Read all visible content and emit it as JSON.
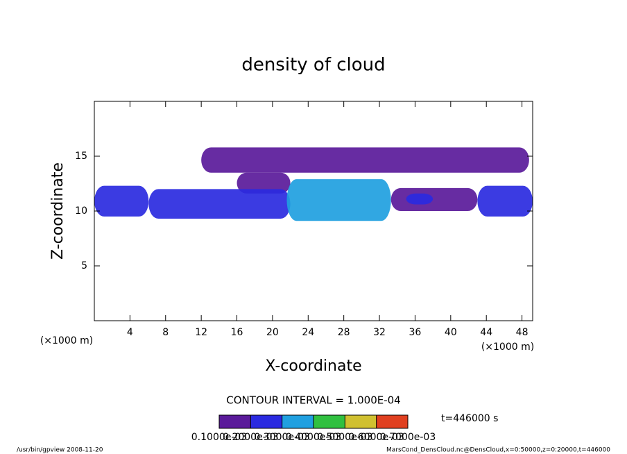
{
  "chart_data": {
    "type": "contour",
    "title": "density of cloud",
    "x_label": "X-coordinate",
    "y_label": "Z-coordinate",
    "x_unit_left": "(×1000 m)",
    "x_unit_right": "(×1000 m)",
    "xlim": [
      0,
      49.2
    ],
    "xticks": [
      4,
      8,
      12,
      16,
      20,
      24,
      28,
      32,
      36,
      40,
      44,
      48
    ],
    "ylim": [
      0,
      20
    ],
    "yticks": [
      5,
      10,
      15
    ],
    "regions": [
      {
        "x": [
          12,
          48.8
        ],
        "z": [
          13.5,
          15.8
        ],
        "value": 0.00015
      },
      {
        "x": [
          16,
          22
        ],
        "z": [
          11.6,
          13.5
        ],
        "value": 0.00015
      },
      {
        "x": [
          0,
          6.1
        ],
        "z": [
          9.5,
          12.3
        ],
        "value": 0.00025
      },
      {
        "x": [
          6.1,
          22
        ],
        "z": [
          9.3,
          12
        ],
        "value": 0.00025
      },
      {
        "x": [
          21.6,
          33.3
        ],
        "z": [
          9.1,
          12.9
        ],
        "value": 0.00035
      },
      {
        "x": [
          33.3,
          43
        ],
        "z": [
          10,
          12.1
        ],
        "value": 0.00015
      },
      {
        "x": [
          35,
          38
        ],
        "z": [
          10.6,
          11.6
        ],
        "value": 0.00025
      },
      {
        "x": [
          43,
          49.2
        ],
        "z": [
          9.5,
          12.3
        ],
        "value": 0.00025
      }
    ],
    "colorbar": {
      "lim": [
        0.0001,
        0.0007
      ],
      "colors": [
        "#5a1a9a",
        "#2a2ae0",
        "#20a0e0",
        "#30c040",
        "#d0c030",
        "#e04020"
      ],
      "ticks": [
        {
          "value": 0.0001,
          "label": "0.1000e-03"
        },
        {
          "value": 0.0002,
          "label": "0.2000e-03"
        },
        {
          "value": 0.0003,
          "label": "0.3000e-03"
        },
        {
          "value": 0.0004,
          "label": "0.4000e-03"
        },
        {
          "value": 0.0005,
          "label": "0.5000e-03"
        },
        {
          "value": 0.0006,
          "label": "0.6000e-03"
        },
        {
          "value": 0.0007,
          "label": "0.7000e-03"
        }
      ]
    },
    "contour_interval": "CONTOUR INTERVAL = 1.000E-04",
    "time": "t=446000 s",
    "footer_left": "/usr/bin/gpview  2008-11-20",
    "footer_right": "MarsCond_DensCloud.nc@DensCloud,x=0:50000,z=0:20000,t=446000"
  }
}
